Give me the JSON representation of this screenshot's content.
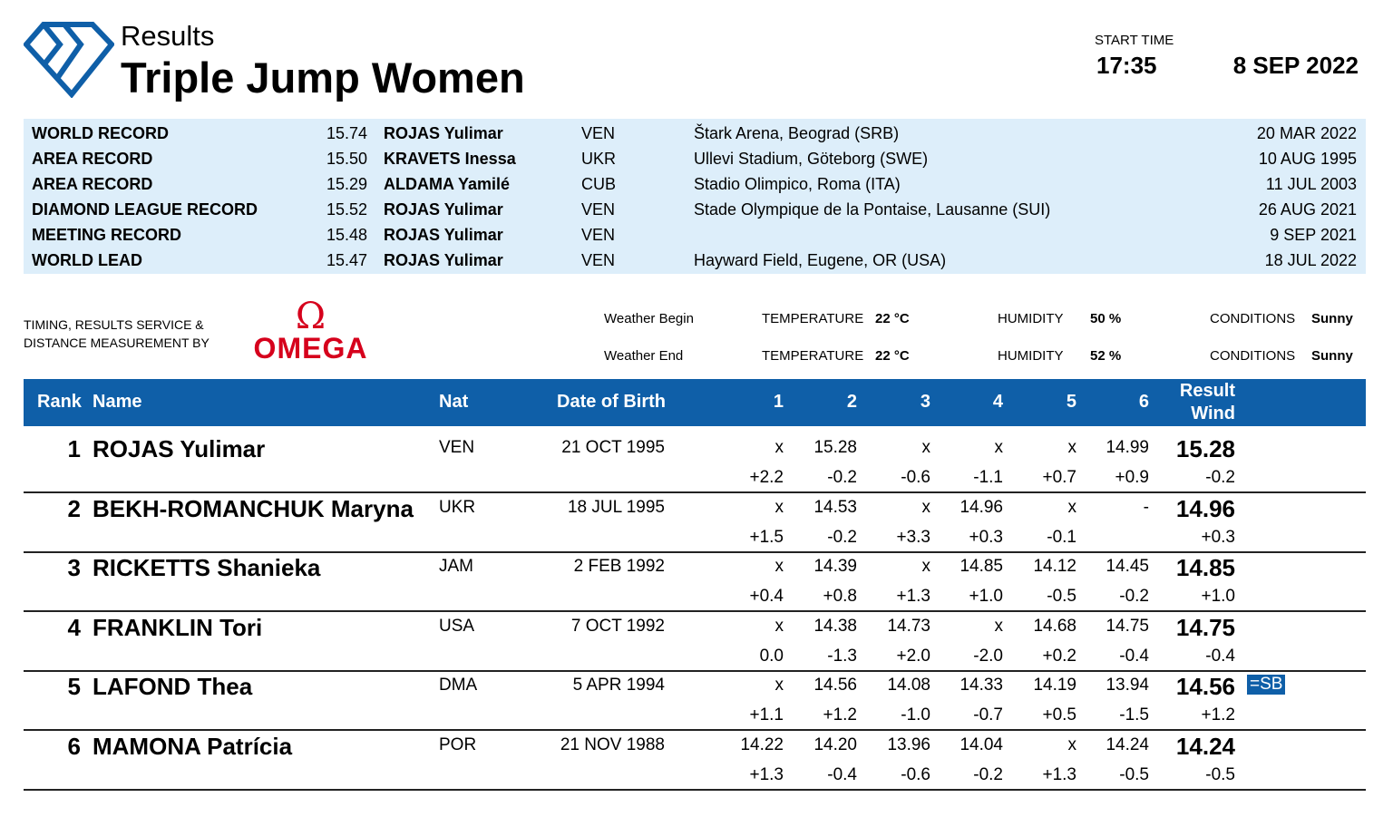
{
  "header": {
    "subtitle": "Results",
    "title": "Triple Jump Women",
    "start_time_label": "START TIME",
    "start_time": "17:35",
    "date": "8 SEP 2022"
  },
  "records": [
    {
      "type": "WORLD RECORD",
      "mark": "15.74",
      "athlete": "ROJAS Yulimar",
      "nat": "VEN",
      "venue": "Štark Arena, Beograd (SRB)",
      "date": "20 MAR 2022"
    },
    {
      "type": "AREA RECORD",
      "mark": "15.50",
      "athlete": "KRAVETS Inessa",
      "nat": "UKR",
      "venue": "Ullevi Stadium, Göteborg (SWE)",
      "date": "10 AUG 1995"
    },
    {
      "type": "AREA RECORD",
      "mark": "15.29",
      "athlete": "ALDAMA Yamilé",
      "nat": "CUB",
      "venue": "Stadio Olimpico, Roma (ITA)",
      "date": "11 JUL 2003"
    },
    {
      "type": "DIAMOND LEAGUE RECORD",
      "mark": "15.52",
      "athlete": "ROJAS Yulimar",
      "nat": "VEN",
      "venue": "Stade Olympique de la Pontaise, Lausanne (SUI)",
      "date": "26 AUG 2021"
    },
    {
      "type": "MEETING RECORD",
      "mark": "15.48",
      "athlete": "ROJAS Yulimar",
      "nat": "VEN",
      "venue": "",
      "date": "9 SEP 2021"
    },
    {
      "type": "WORLD LEAD",
      "mark": "15.47",
      "athlete": "ROJAS Yulimar",
      "nat": "VEN",
      "venue": "Hayward Field, Eugene, OR (USA)",
      "date": "18 JUL 2022"
    }
  ],
  "timing": {
    "line1": "TIMING, RESULTS SERVICE &",
    "line2": "DISTANCE MEASUREMENT BY",
    "sponsor_symbol": "Ω",
    "sponsor": "OMEGA"
  },
  "weather": [
    {
      "label": "Weather Begin",
      "temp_label": "TEMPERATURE",
      "temp": "22 °C",
      "hum_label": "HUMIDITY",
      "hum": "50 %",
      "cond_label": "CONDITIONS",
      "cond": "Sunny"
    },
    {
      "label": "Weather End",
      "temp_label": "TEMPERATURE",
      "temp": "22 °C",
      "hum_label": "HUMIDITY",
      "hum": "52 %",
      "cond_label": "CONDITIONS",
      "cond": "Sunny"
    }
  ],
  "table": {
    "headers": {
      "rank": "Rank",
      "name": "Name",
      "nat": "Nat",
      "dob": "Date of Birth",
      "a": [
        "1",
        "2",
        "3",
        "4",
        "5",
        "6"
      ],
      "result": "Result",
      "wind": "Wind"
    },
    "rows": [
      {
        "rank": "1",
        "name": "ROJAS Yulimar",
        "nat": "VEN",
        "dob": "21 OCT 1995",
        "marks": [
          "x",
          "15.28",
          "x",
          "x",
          "x",
          "14.99"
        ],
        "winds": [
          "+2.2",
          "-0.2",
          "-0.6",
          "-1.1",
          "+0.7",
          "+0.9"
        ],
        "result": "15.28",
        "wind": "-0.2",
        "note": ""
      },
      {
        "rank": "2",
        "name": "BEKH-ROMANCHUK Maryna",
        "nat": "UKR",
        "dob": "18 JUL 1995",
        "marks": [
          "x",
          "14.53",
          "x",
          "14.96",
          "x",
          "-"
        ],
        "winds": [
          "+1.5",
          "-0.2",
          "+3.3",
          "+0.3",
          "-0.1",
          ""
        ],
        "result": "14.96",
        "wind": "+0.3",
        "note": ""
      },
      {
        "rank": "3",
        "name": "RICKETTS Shanieka",
        "nat": "JAM",
        "dob": "2 FEB 1992",
        "marks": [
          "x",
          "14.39",
          "x",
          "14.85",
          "14.12",
          "14.45"
        ],
        "winds": [
          "+0.4",
          "+0.8",
          "+1.3",
          "+1.0",
          "-0.5",
          "-0.2"
        ],
        "result": "14.85",
        "wind": "+1.0",
        "note": ""
      },
      {
        "rank": "4",
        "name": "FRANKLIN Tori",
        "nat": "USA",
        "dob": "7 OCT 1992",
        "marks": [
          "x",
          "14.38",
          "14.73",
          "x",
          "14.68",
          "14.75"
        ],
        "winds": [
          "0.0",
          "-1.3",
          "+2.0",
          "-2.0",
          "+0.2",
          "-0.4"
        ],
        "result": "14.75",
        "wind": "-0.4",
        "note": ""
      },
      {
        "rank": "5",
        "name": "LAFOND Thea",
        "nat": "DMA",
        "dob": "5 APR 1994",
        "marks": [
          "x",
          "14.56",
          "14.08",
          "14.33",
          "14.19",
          "13.94"
        ],
        "winds": [
          "+1.1",
          "+1.2",
          "-1.0",
          "-0.7",
          "+0.5",
          "-1.5"
        ],
        "result": "14.56",
        "wind": "+1.2",
        "note": "=SB"
      },
      {
        "rank": "6",
        "name": "MAMONA Patrícia",
        "nat": "POR",
        "dob": "21 NOV 1988",
        "marks": [
          "14.22",
          "14.20",
          "13.96",
          "14.04",
          "x",
          "14.24"
        ],
        "winds": [
          "+1.3",
          "-0.4",
          "-0.6",
          "-0.2",
          "+1.3",
          "-0.5"
        ],
        "result": "14.24",
        "wind": "-0.5",
        "note": ""
      }
    ]
  },
  "colors": {
    "brand": "#0f5fa8",
    "records_bg": "#ddeefa",
    "omega": "#d6001c"
  }
}
